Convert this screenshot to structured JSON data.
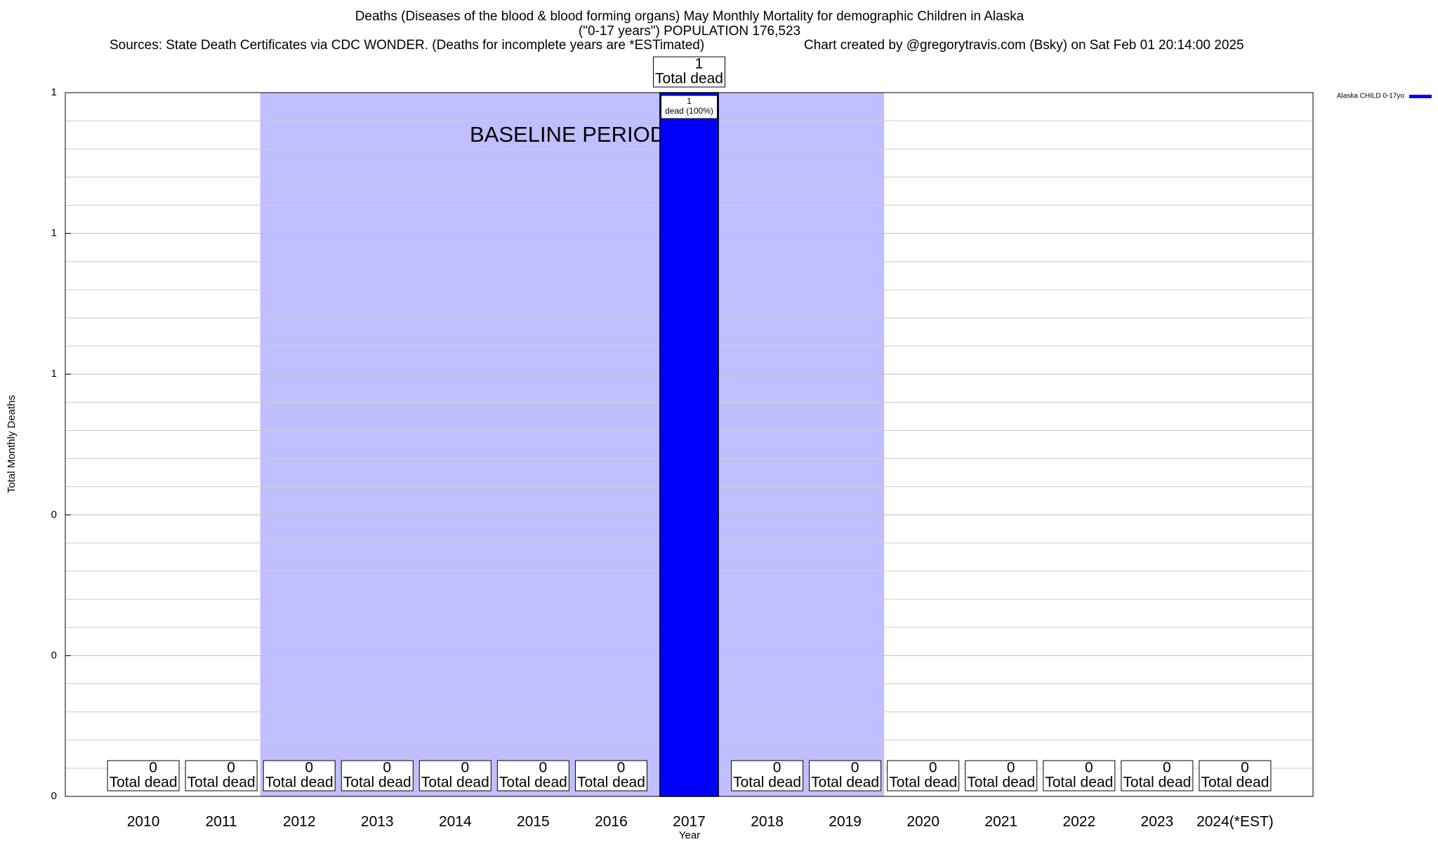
{
  "chart_data": {
    "type": "bar",
    "title": [
      "Deaths (Diseases of the blood & blood forming organs) May Monthly Mortality for demographic Children in Alaska",
      "(\"0-17 years\") POPULATION 176,523"
    ],
    "subtitle": "Sources: State Death Certificates via CDC WONDER. (Deaths for incomplete years are *ESTimated)",
    "credit": "Chart created by @gregorytravis.com (Bsky) on Sat Feb 01 20:14:00 2025",
    "x_label": "Year",
    "y_label": "Total Monthly Deaths",
    "categories": [
      "2010",
      "2011",
      "2012",
      "2013",
      "2014",
      "2015",
      "2016",
      "2017",
      "2018",
      "2019",
      "2020",
      "2021",
      "2022",
      "2023",
      "2024(*EST)"
    ],
    "series": [
      {
        "name": "Alaska CHILD 0-17yo",
        "color": "#0000ff",
        "values": [
          0,
          0,
          0,
          0,
          0,
          0,
          0,
          1,
          0,
          0,
          0,
          0,
          0,
          0,
          0
        ]
      }
    ],
    "box_text": "Total dead",
    "inner_labels": [
      null,
      null,
      null,
      null,
      null,
      null,
      null,
      "dead (100%)",
      null,
      null,
      null,
      null,
      null,
      null,
      null
    ],
    "baseline": {
      "label": "BASELINE PERIOD",
      "start": "2012",
      "end": "2019",
      "color": "#bfbfff"
    },
    "ylim": [
      0,
      1
    ],
    "yticks": [
      {
        "value": 0,
        "label": "0"
      },
      {
        "value": 0.2,
        "label": "0"
      },
      {
        "value": 0.4,
        "label": "0"
      },
      {
        "value": 0.6,
        "label": "1"
      },
      {
        "value": 0.8,
        "label": "1"
      },
      {
        "value": 1,
        "label": "1"
      }
    ],
    "grid": true,
    "minor_grid": 5,
    "legend": "outside-top-right"
  }
}
